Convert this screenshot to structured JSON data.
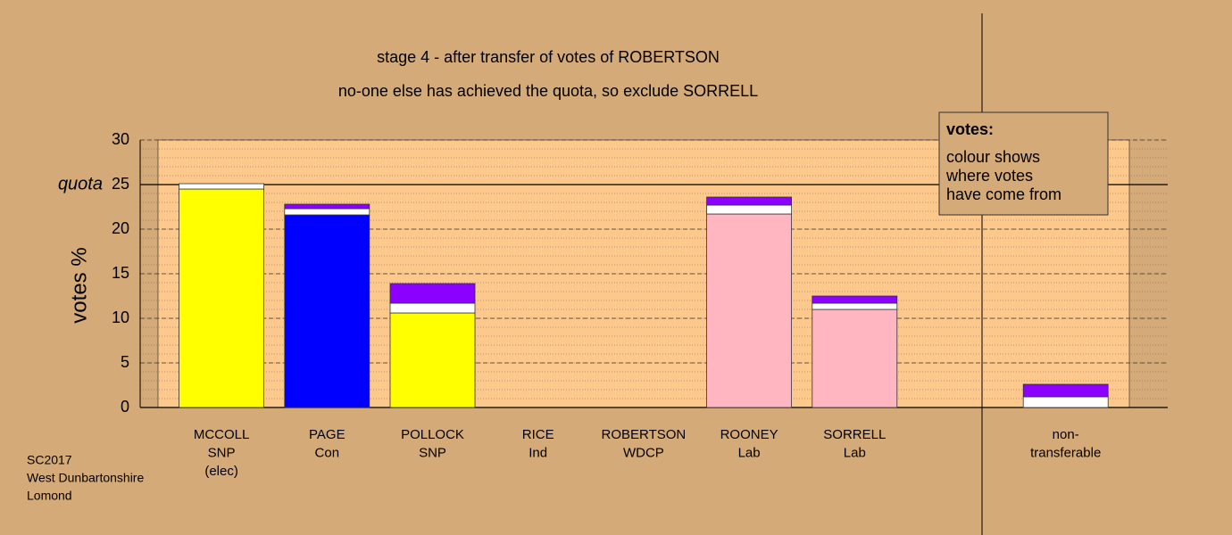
{
  "chart_data": {
    "type": "stacked-bar",
    "title": "stage 4 - after transfer of votes of ROBERTSON",
    "subtitle": "no-one else has achieved the quota, so exclude SORRELL",
    "y_label": "votes %",
    "quota": {
      "value": 25,
      "label": "quota"
    },
    "categories": [
      [
        "MCCOLL",
        "SNP",
        "(elec)"
      ],
      [
        "PAGE",
        "Con"
      ],
      [
        "POLLOCK",
        "SNP"
      ],
      [
        "RICE",
        "Ind"
      ],
      [
        "ROBERTSON",
        "WDCP"
      ],
      [
        "ROONEY",
        "Lab"
      ],
      [
        "SORRELL",
        "Lab"
      ],
      null,
      [
        "non-",
        "transferable"
      ]
    ],
    "series": [
      {
        "colors": [
          "#ffff00",
          "#0000ff",
          "#ffff00",
          "#ffff00",
          "#d2b48c",
          "#ffb6c1",
          "#ffb6c1",
          null,
          "#ffffff"
        ],
        "values": [
          24.5,
          21.6,
          10.6,
          0,
          0,
          21.7,
          11.0,
          null,
          0
        ]
      },
      {
        "color": "#ffffff",
        "values": [
          0.6,
          0.7,
          1.1,
          0,
          0,
          1.0,
          0.7,
          null,
          1.2
        ]
      },
      {
        "color": "#8b00ff",
        "values": [
          0,
          0.5,
          2.2,
          0,
          0,
          0.9,
          0.8,
          null,
          1.4
        ]
      }
    ],
    "ylim": [
      0,
      30
    ],
    "yticks": [
      0,
      5,
      10,
      15,
      20,
      25,
      30
    ],
    "grid": true,
    "minor_grid_step": 1,
    "legend_box": {
      "title": "votes:",
      "lines": [
        "colour shows",
        "where votes",
        "have come from"
      ]
    },
    "footnote": [
      "SC2017",
      "West Dunbartonshire",
      "Lomond"
    ]
  }
}
